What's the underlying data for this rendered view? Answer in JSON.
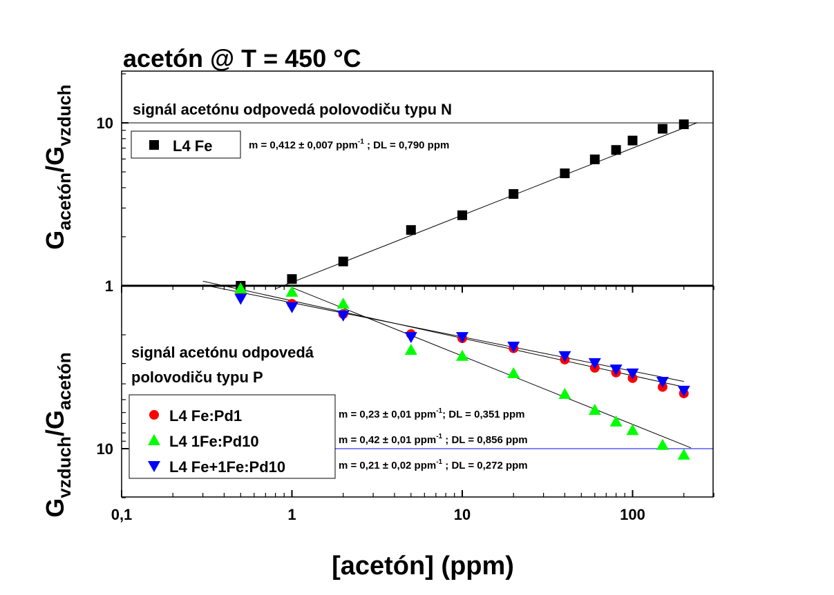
{
  "chart_data": {
    "type": "scatter",
    "title": "acetón @ T = 450 °C",
    "xlabel": "[acetón] (ppm)",
    "xscale": "log",
    "xlim": [
      0.1,
      300
    ],
    "xticks": [
      0.1,
      1,
      10,
      100
    ],
    "xtick_labels": [
      "0,1",
      "1",
      "10",
      "100"
    ],
    "panels": [
      {
        "name": "top",
        "ylabel_main": "G",
        "ylabel_sub1": "acetón",
        "ylabel_sub2": "vzduch",
        "yscale": "log",
        "ylim": [
          1,
          20
        ],
        "ytick_labels": [
          "1",
          "10"
        ],
        "annotation": "signál acetónu odpovedá polovodiču typu N",
        "series": [
          {
            "name": "L4 Fe",
            "marker": "square",
            "color": "#000000",
            "x": [
              0.5,
              1,
              2,
              5,
              10,
              20,
              40,
              60,
              80,
              100,
              150,
              200
            ],
            "y": [
              1.0,
              1.1,
              1.41,
              2.2,
              2.71,
              3.66,
              4.9,
              5.97,
              6.82,
              7.79,
              9.2,
              9.8
            ],
            "fit": {
              "slope": 0.412,
              "intercept_log10": 0.021,
              "xrange": [
                0.8,
                240
              ]
            },
            "fit_label": {
              "pre": "m = 0,412 ± 0,007 ppm",
              "sup": "-1",
              "post": " ; DL = 0,790 ppm"
            }
          }
        ]
      },
      {
        "name": "bottom",
        "ylabel_main": "G",
        "ylabel_sub1": "vzduch",
        "ylabel_sub2": "acetón",
        "yscale": "log",
        "ylim": [
          1,
          20
        ],
        "ytick_labels": [
          "10"
        ],
        "annotation_line1": "signál acetónu odpovedá",
        "annotation_line2": "polovodiču typu P",
        "series": [
          {
            "name": "L4 Fe:Pd1",
            "marker": "circle",
            "color": "#ff0000",
            "x": [
              0.5,
              1,
              2,
              5,
              10,
              20,
              40,
              60,
              80,
              100,
              150,
              200
            ],
            "y": [
              1.1,
              1.29,
              1.49,
              1.98,
              2.1,
              2.42,
              2.84,
              3.19,
              3.41,
              3.69,
              4.18,
              4.58
            ],
            "fit": {
              "slope": 0.23,
              "intercept_log10": 0.092,
              "xrange": [
                0.3,
                200
              ]
            },
            "fit_label": {
              "pre": "m = 0,23 ± 0,01 ppm",
              "sup": "-1",
              "post": "; DL = 0,351 ppm"
            }
          },
          {
            "name": "L4 1Fe:Pd10",
            "marker": "triangle-up",
            "color": "#00ff00",
            "x": [
              0.5,
              1,
              2,
              5,
              10,
              20,
              40,
              60,
              80,
              100,
              150,
              200
            ],
            "y": [
              1.04,
              1.09,
              1.29,
              2.48,
              2.7,
              3.45,
              4.62,
              5.79,
              6.83,
              7.7,
              9.5,
              10.9
            ],
            "fit": {
              "slope": 0.42,
              "intercept_log10": 0.011,
              "xrange": [
                1,
                220
              ]
            },
            "fit_label": {
              "pre": "m = 0,42 ± 0,01 ppm",
              "sup": "-1",
              "post": " ; DL = 0,856 ppm"
            }
          },
          {
            "name": "L4 Fe+1Fe:Pd10",
            "marker": "triangle-down",
            "color": "#0000ff",
            "x": [
              0.5,
              1,
              2,
              5,
              10,
              20,
              40,
              60,
              80,
              100,
              150,
              200
            ],
            "y": [
              1.2,
              1.35,
              1.52,
              2.06,
              2.06,
              2.36,
              2.7,
              2.98,
              3.26,
              3.45,
              3.88,
              4.4
            ],
            "fit": {
              "slope": 0.21,
              "intercept_log10": 0.104,
              "xrange": [
                0.3,
                200
              ]
            },
            "fit_label": {
              "pre": "m = 0,21 ± 0,02 ppm",
              "sup": "-1",
              "post": " ; DL = 0,272 ppm"
            }
          }
        ]
      }
    ],
    "reference_lines": [
      {
        "panel": "top",
        "y": 10,
        "color": "#000000"
      },
      {
        "panel": "bottom",
        "y": 10,
        "color": "#0000ff"
      }
    ]
  }
}
